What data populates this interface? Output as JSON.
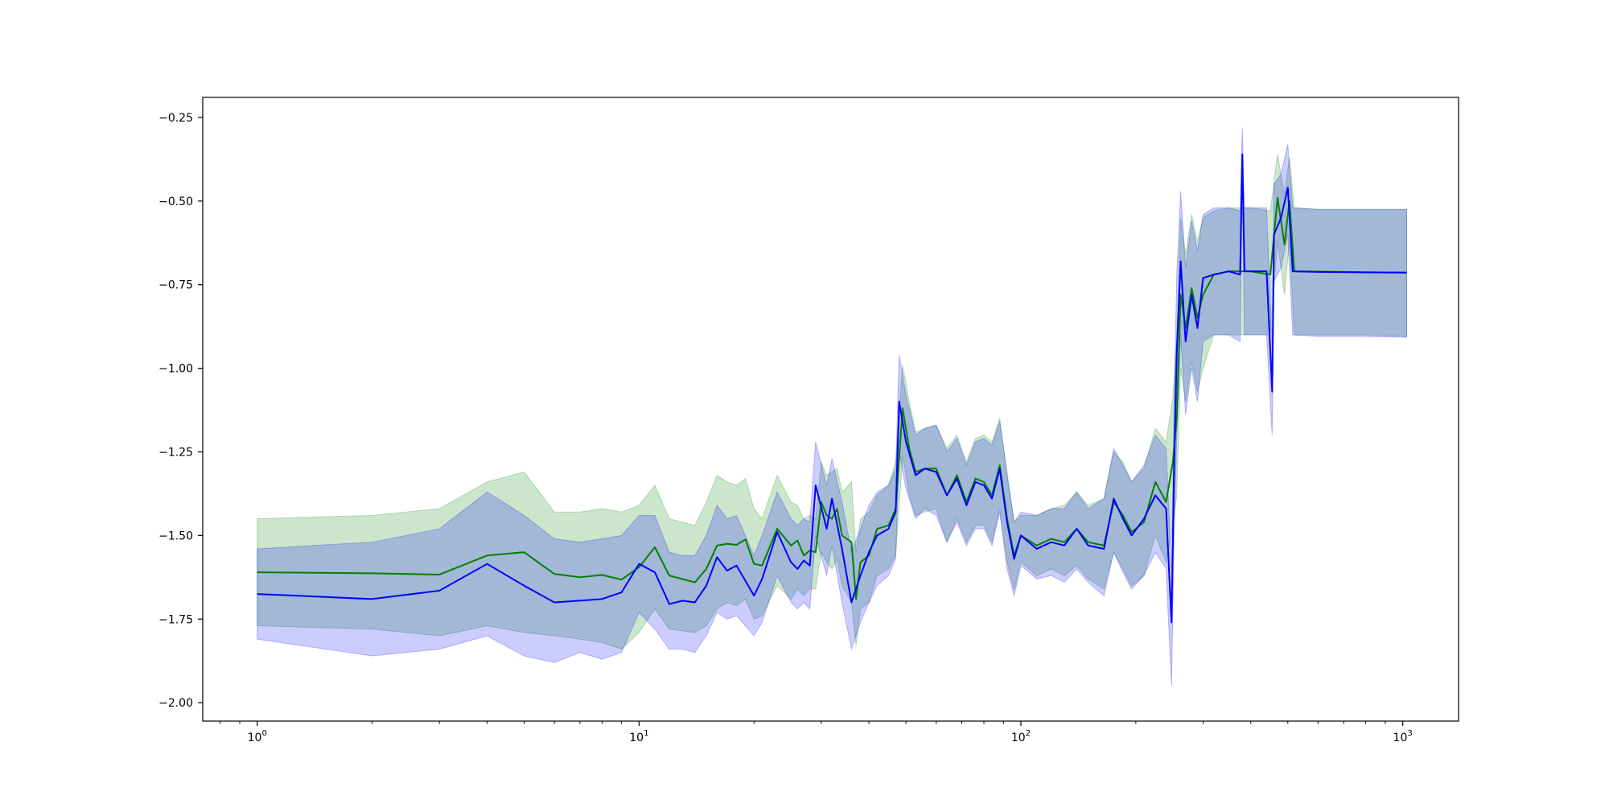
{
  "chart_data": {
    "type": "line",
    "xscale": "log",
    "xlim": [
      0.72,
      1400
    ],
    "ylim": [
      -2.055,
      -0.19
    ],
    "x_ticks": [
      {
        "value": 1,
        "base": "10",
        "exp": "0"
      },
      {
        "value": 10,
        "base": "10",
        "exp": "1"
      },
      {
        "value": 100,
        "base": "10",
        "exp": "2"
      },
      {
        "value": 1000,
        "base": "10",
        "exp": "3"
      }
    ],
    "y_ticks": [
      {
        "value": -0.25,
        "label": "−0.25"
      },
      {
        "value": -0.5,
        "label": "−0.50"
      },
      {
        "value": -0.75,
        "label": "−0.75"
      },
      {
        "value": -1.0,
        "label": "−1.00"
      },
      {
        "value": -1.25,
        "label": "−1.25"
      },
      {
        "value": -1.5,
        "label": "−1.50"
      },
      {
        "value": -1.75,
        "label": "−1.75"
      },
      {
        "value": -2.0,
        "label": "−2.00"
      }
    ],
    "grid": false,
    "title": "",
    "xlabel": "",
    "ylabel": "",
    "series": [
      {
        "color": "#008000",
        "band_color": "#008000",
        "band_opacity": 0.2,
        "points": [
          [
            1,
            -1.61,
            -1.45,
            -1.77
          ],
          [
            2,
            -1.613,
            -1.44,
            -1.78
          ],
          [
            3,
            -1.617,
            -1.42,
            -1.8
          ],
          [
            4,
            -1.56,
            -1.34,
            -1.77
          ],
          [
            5,
            -1.55,
            -1.31,
            -1.79
          ],
          [
            6,
            -1.615,
            -1.43,
            -1.8
          ],
          [
            7,
            -1.625,
            -1.43,
            -1.81
          ],
          [
            8,
            -1.618,
            -1.42,
            -1.82
          ],
          [
            9,
            -1.632,
            -1.43,
            -1.84
          ],
          [
            10,
            -1.595,
            -1.41,
            -1.79
          ],
          [
            11,
            -1.535,
            -1.35,
            -1.72
          ],
          [
            12,
            -1.62,
            -1.45,
            -1.78
          ],
          [
            14,
            -1.64,
            -1.47,
            -1.79
          ],
          [
            15,
            -1.6,
            -1.4,
            -1.77
          ],
          [
            16,
            -1.53,
            -1.32,
            -1.72
          ],
          [
            17,
            -1.525,
            -1.34,
            -1.7
          ],
          [
            18,
            -1.528,
            -1.35,
            -1.71
          ],
          [
            19,
            -1.512,
            -1.33,
            -1.69
          ],
          [
            20,
            -1.585,
            -1.42,
            -1.75
          ],
          [
            21,
            -1.59,
            -1.45,
            -1.74
          ],
          [
            23,
            -1.48,
            -1.32,
            -1.65
          ],
          [
            25,
            -1.53,
            -1.4,
            -1.69
          ],
          [
            26,
            -1.515,
            -1.41,
            -1.66
          ],
          [
            27,
            -1.56,
            -1.45,
            -1.68
          ],
          [
            28,
            -1.545,
            -1.44,
            -1.66
          ],
          [
            29,
            -1.55,
            -1.45,
            -1.66
          ],
          [
            30,
            -1.4,
            -1.28,
            -1.55
          ],
          [
            31,
            -1.44,
            -1.32,
            -1.58
          ],
          [
            32,
            -1.45,
            -1.31,
            -1.6
          ],
          [
            33,
            -1.42,
            -1.3,
            -1.57
          ],
          [
            34,
            -1.5,
            -1.37,
            -1.65
          ],
          [
            36,
            -1.52,
            -1.34,
            -1.7
          ],
          [
            37,
            -1.69,
            -1.55,
            -1.83
          ],
          [
            38,
            -1.58,
            -1.45,
            -1.72
          ],
          [
            40,
            -1.56,
            -1.43,
            -1.7
          ],
          [
            42,
            -1.48,
            -1.38,
            -1.62
          ],
          [
            45,
            -1.47,
            -1.35,
            -1.6
          ],
          [
            47,
            -1.42,
            -1.28,
            -1.56
          ],
          [
            49,
            -1.12,
            -0.99,
            -1.26
          ],
          [
            51,
            -1.24,
            -1.1,
            -1.38
          ],
          [
            53,
            -1.31,
            -1.19,
            -1.44
          ],
          [
            56,
            -1.3,
            -1.18,
            -1.43
          ],
          [
            60,
            -1.3,
            -1.17,
            -1.42
          ],
          [
            64,
            -1.38,
            -1.24,
            -1.52
          ],
          [
            68,
            -1.32,
            -1.2,
            -1.45
          ],
          [
            72,
            -1.4,
            -1.28,
            -1.52
          ],
          [
            76,
            -1.33,
            -1.21,
            -1.47
          ],
          [
            80,
            -1.34,
            -1.2,
            -1.47
          ],
          [
            84,
            -1.38,
            -1.22,
            -1.52
          ],
          [
            88,
            -1.29,
            -1.15,
            -1.42
          ],
          [
            92,
            -1.45,
            -1.31,
            -1.58
          ],
          [
            96,
            -1.56,
            -1.46,
            -1.66
          ],
          [
            100,
            -1.5,
            -1.44,
            -1.58
          ],
          [
            110,
            -1.53,
            -1.44,
            -1.62
          ],
          [
            120,
            -1.51,
            -1.42,
            -1.6
          ],
          [
            130,
            -1.52,
            -1.41,
            -1.62
          ],
          [
            140,
            -1.48,
            -1.37,
            -1.59
          ],
          [
            150,
            -1.52,
            -1.41,
            -1.63
          ],
          [
            165,
            -1.53,
            -1.39,
            -1.66
          ],
          [
            175,
            -1.4,
            -1.25,
            -1.55
          ],
          [
            185,
            -1.44,
            -1.28,
            -1.6
          ],
          [
            195,
            -1.49,
            -1.34,
            -1.65
          ],
          [
            210,
            -1.46,
            -1.3,
            -1.62
          ],
          [
            225,
            -1.34,
            -1.18,
            -1.5
          ],
          [
            240,
            -1.4,
            -1.22,
            -1.58
          ],
          [
            250,
            -1.28,
            -1.09,
            -1.47
          ],
          [
            256,
            -1.15,
            -0.92,
            -1.38
          ],
          [
            262,
            -0.78,
            -0.55,
            -1.0
          ],
          [
            270,
            -0.88,
            -0.66,
            -1.1
          ],
          [
            280,
            -0.76,
            -0.54,
            -0.98
          ],
          [
            290,
            -0.85,
            -0.62,
            -1.07
          ],
          [
            300,
            -0.78,
            -0.55,
            -1.0
          ],
          [
            320,
            -0.72,
            -0.53,
            -0.9
          ],
          [
            350,
            -0.71,
            -0.52,
            -0.9
          ],
          [
            380,
            -0.71,
            -0.52,
            -0.9
          ],
          [
            400,
            -0.71,
            -0.52,
            -0.9
          ],
          [
            450,
            -0.72,
            -0.53,
            -0.9
          ],
          [
            470,
            -0.49,
            -0.36,
            -0.62
          ],
          [
            490,
            -0.63,
            -0.48,
            -0.78
          ],
          [
            505,
            -0.5,
            -0.37,
            -0.62
          ],
          [
            520,
            -0.71,
            -0.52,
            -0.9
          ],
          [
            600,
            -0.711,
            -0.525,
            -0.9
          ],
          [
            800,
            -0.713,
            -0.525,
            -0.9
          ],
          [
            1024,
            -0.714,
            -0.525,
            -0.905
          ]
        ]
      },
      {
        "color": "#0000ff",
        "band_color": "#0000ff",
        "band_opacity": 0.2,
        "points": [
          [
            1,
            -1.675,
            -1.54,
            -1.81
          ],
          [
            2,
            -1.69,
            -1.52,
            -1.86
          ],
          [
            3,
            -1.665,
            -1.48,
            -1.84
          ],
          [
            4,
            -1.585,
            -1.37,
            -1.8
          ],
          [
            5,
            -1.65,
            -1.44,
            -1.86
          ],
          [
            6,
            -1.7,
            -1.51,
            -1.88
          ],
          [
            7,
            -1.695,
            -1.52,
            -1.85
          ],
          [
            8,
            -1.69,
            -1.51,
            -1.87
          ],
          [
            9,
            -1.67,
            -1.5,
            -1.85
          ],
          [
            10,
            -1.585,
            -1.44,
            -1.73
          ],
          [
            11,
            -1.61,
            -1.44,
            -1.78
          ],
          [
            12,
            -1.705,
            -1.55,
            -1.84
          ],
          [
            13,
            -1.695,
            -1.56,
            -1.84
          ],
          [
            14,
            -1.7,
            -1.56,
            -1.85
          ],
          [
            15,
            -1.65,
            -1.5,
            -1.8
          ],
          [
            16,
            -1.565,
            -1.41,
            -1.73
          ],
          [
            17,
            -1.605,
            -1.45,
            -1.75
          ],
          [
            18,
            -1.59,
            -1.44,
            -1.74
          ],
          [
            20,
            -1.68,
            -1.56,
            -1.8
          ],
          [
            21,
            -1.63,
            -1.5,
            -1.76
          ],
          [
            23,
            -1.49,
            -1.37,
            -1.62
          ],
          [
            25,
            -1.58,
            -1.45,
            -1.7
          ],
          [
            26,
            -1.6,
            -1.47,
            -1.72
          ],
          [
            27,
            -1.575,
            -1.45,
            -1.7
          ],
          [
            28,
            -1.59,
            -1.46,
            -1.72
          ],
          [
            29,
            -1.35,
            -1.22,
            -1.5
          ],
          [
            31,
            -1.48,
            -1.35,
            -1.62
          ],
          [
            32,
            -1.39,
            -1.27,
            -1.53
          ],
          [
            34,
            -1.54,
            -1.4,
            -1.7
          ],
          [
            36,
            -1.7,
            -1.55,
            -1.84
          ],
          [
            38,
            -1.62,
            -1.48,
            -1.76
          ],
          [
            40,
            -1.55,
            -1.41,
            -1.7
          ],
          [
            42,
            -1.5,
            -1.37,
            -1.65
          ],
          [
            45,
            -1.48,
            -1.35,
            -1.62
          ],
          [
            47,
            -1.43,
            -1.3,
            -1.57
          ],
          [
            48,
            -1.1,
            -0.96,
            -1.25
          ],
          [
            50,
            -1.22,
            -1.08,
            -1.36
          ],
          [
            53,
            -1.32,
            -1.2,
            -1.45
          ],
          [
            56,
            -1.3,
            -1.18,
            -1.42
          ],
          [
            60,
            -1.31,
            -1.17,
            -1.44
          ],
          [
            64,
            -1.38,
            -1.25,
            -1.52
          ],
          [
            68,
            -1.33,
            -1.21,
            -1.46
          ],
          [
            72,
            -1.41,
            -1.29,
            -1.53
          ],
          [
            76,
            -1.34,
            -1.22,
            -1.48
          ],
          [
            80,
            -1.35,
            -1.21,
            -1.48
          ],
          [
            84,
            -1.39,
            -1.23,
            -1.53
          ],
          [
            88,
            -1.3,
            -1.16,
            -1.43
          ],
          [
            92,
            -1.46,
            -1.32,
            -1.6
          ],
          [
            96,
            -1.57,
            -1.46,
            -1.68
          ],
          [
            100,
            -1.5,
            -1.43,
            -1.59
          ],
          [
            110,
            -1.54,
            -1.44,
            -1.63
          ],
          [
            120,
            -1.52,
            -1.42,
            -1.62
          ],
          [
            130,
            -1.53,
            -1.42,
            -1.64
          ],
          [
            140,
            -1.48,
            -1.37,
            -1.6
          ],
          [
            150,
            -1.53,
            -1.42,
            -1.64
          ],
          [
            165,
            -1.54,
            -1.39,
            -1.68
          ],
          [
            175,
            -1.39,
            -1.24,
            -1.55
          ],
          [
            185,
            -1.45,
            -1.29,
            -1.61
          ],
          [
            195,
            -1.5,
            -1.34,
            -1.66
          ],
          [
            210,
            -1.45,
            -1.29,
            -1.62
          ],
          [
            225,
            -1.38,
            -1.2,
            -1.55
          ],
          [
            240,
            -1.42,
            -1.24,
            -1.6
          ],
          [
            248,
            -1.76,
            -1.6,
            -1.95
          ],
          [
            252,
            -1.28,
            -1.08,
            -1.5
          ],
          [
            256,
            -0.95,
            -0.72,
            -1.2
          ],
          [
            262,
            -0.68,
            -0.47,
            -0.9
          ],
          [
            270,
            -0.92,
            -0.7,
            -1.14
          ],
          [
            280,
            -0.78,
            -0.56,
            -1.0
          ],
          [
            290,
            -0.88,
            -0.65,
            -1.1
          ],
          [
            300,
            -0.73,
            -0.54,
            -0.92
          ],
          [
            320,
            -0.72,
            -0.52,
            -0.9
          ],
          [
            350,
            -0.71,
            -0.52,
            -0.9
          ],
          [
            375,
            -0.72,
            -0.53,
            -0.92
          ],
          [
            380,
            -0.36,
            -0.28,
            -0.45
          ],
          [
            385,
            -0.71,
            -0.52,
            -0.9
          ],
          [
            440,
            -0.71,
            -0.52,
            -0.9
          ],
          [
            455,
            -1.07,
            -0.94,
            -1.2
          ],
          [
            460,
            -0.6,
            -0.45,
            -0.74
          ],
          [
            480,
            -0.55,
            -0.42,
            -0.7
          ],
          [
            500,
            -0.46,
            -0.33,
            -0.6
          ],
          [
            515,
            -0.71,
            -0.52,
            -0.9
          ],
          [
            600,
            -0.712,
            -0.525,
            -0.905
          ],
          [
            800,
            -0.713,
            -0.525,
            -0.905
          ],
          [
            1024,
            -0.714,
            -0.525,
            -0.907
          ]
        ]
      }
    ]
  }
}
